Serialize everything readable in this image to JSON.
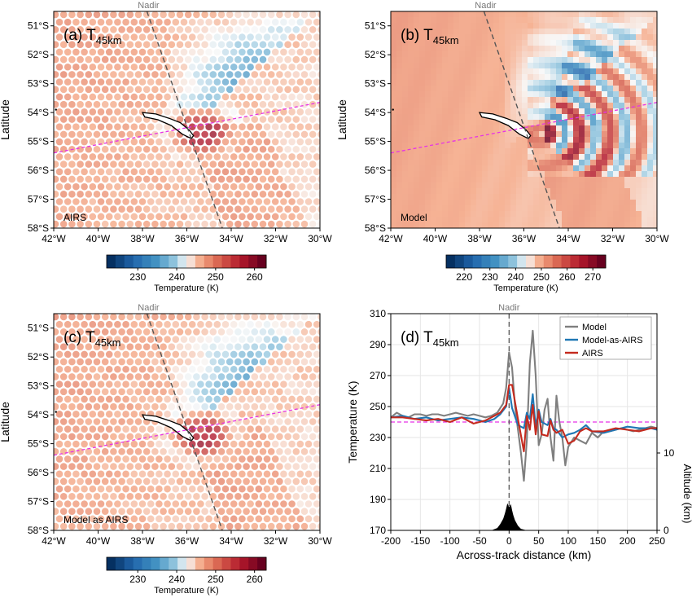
{
  "chart_data": [
    {
      "id": "a",
      "type": "heatmap",
      "panel_label": "(a)",
      "title_main": "T",
      "title_sub": "45km",
      "source_label": "AIRS",
      "nadir_label": "Nadir",
      "ylabel": "Latitude",
      "xticks": [
        "42°W",
        "40°W",
        "38°W",
        "36°W",
        "34°W",
        "32°W",
        "30°W"
      ],
      "yticks": [
        "51°S",
        "52°S",
        "53°S",
        "54°S",
        "55°S",
        "56°S",
        "57°S",
        "58°S"
      ],
      "xlim": [
        -42,
        -30
      ],
      "ylim": [
        -58,
        -50.5
      ],
      "colorbar": {
        "ticks": [
          "230",
          "240",
          "250",
          "260"
        ],
        "range": [
          222,
          263
        ],
        "label": "Temperature (K)"
      }
    },
    {
      "id": "b",
      "type": "heatmap",
      "panel_label": "(b)",
      "title_main": "T",
      "title_sub": "45km",
      "source_label": "Model",
      "nadir_label": "Nadir",
      "ylabel": "Latitude",
      "xticks": [
        "42°W",
        "40°W",
        "38°W",
        "36°W",
        "34°W",
        "32°W",
        "30°W"
      ],
      "yticks": [
        "51°S",
        "52°S",
        "53°S",
        "54°S",
        "55°S",
        "56°S",
        "57°S",
        "58°S"
      ],
      "xlim": [
        -42,
        -30
      ],
      "ylim": [
        -58,
        -50.5
      ],
      "colorbar": {
        "ticks": [
          "220",
          "230",
          "240",
          "250",
          "260",
          "270"
        ],
        "range": [
          213,
          275
        ],
        "label": "Temperature (K)"
      }
    },
    {
      "id": "c",
      "type": "heatmap",
      "panel_label": "(c)",
      "title_main": "T",
      "title_sub": "45km",
      "source_label": "Model as AIRS",
      "nadir_label": "Nadir",
      "ylabel": "Latitude",
      "xticks": [
        "42°W",
        "40°W",
        "38°W",
        "36°W",
        "34°W",
        "32°W",
        "30°W"
      ],
      "yticks": [
        "51°S",
        "52°S",
        "53°S",
        "54°S",
        "55°S",
        "56°S",
        "57°S",
        "58°S"
      ],
      "xlim": [
        -42,
        -30
      ],
      "ylim": [
        -58,
        -50.5
      ],
      "colorbar": {
        "ticks": [
          "230",
          "240",
          "250",
          "260"
        ],
        "range": [
          222,
          263
        ],
        "label": "Temperature (K)"
      }
    },
    {
      "id": "d",
      "type": "line",
      "panel_label": "(d)",
      "title_main": "T",
      "title_sub": "45km",
      "nadir_label": "Nadir",
      "xlabel": "Across-track distance (km)",
      "ylabel": "Temperature (K)",
      "y2label": "Altitude (km)",
      "xlim": [
        -200,
        250
      ],
      "ylim": [
        170,
        310
      ],
      "y2lim": [
        0,
        28
      ],
      "xticks": [
        "-200",
        "-150",
        "-100",
        "-50",
        "0",
        "50",
        "100",
        "150",
        "200",
        "250"
      ],
      "yticks": [
        "170",
        "190",
        "210",
        "230",
        "250",
        "270",
        "290",
        "310"
      ],
      "y2ticks": [
        "0",
        "10"
      ],
      "grid": true,
      "legend_position": "top-right",
      "reference_line_y": 240,
      "nadir_x": 0,
      "series": [
        {
          "name": "Model",
          "color": "#7f7f7f",
          "x": [
            -200,
            -190,
            -180,
            -170,
            -160,
            -150,
            -140,
            -130,
            -120,
            -110,
            -100,
            -90,
            -80,
            -70,
            -60,
            -50,
            -40,
            -30,
            -20,
            -10,
            -5,
            0,
            5,
            10,
            20,
            25,
            30,
            35,
            40,
            45,
            50,
            55,
            60,
            65,
            70,
            75,
            80,
            85,
            90,
            95,
            100,
            110,
            120,
            130,
            140,
            150,
            160,
            170,
            180,
            190,
            200,
            210,
            220,
            230,
            240,
            250
          ],
          "y": [
            243,
            246,
            244,
            243,
            245,
            245,
            244,
            245,
            245,
            244,
            245,
            246,
            245,
            244,
            245,
            244,
            243,
            244,
            246,
            252,
            262,
            285,
            275,
            250,
            220,
            202,
            228,
            278,
            299,
            270,
            225,
            232,
            248,
            255,
            230,
            215,
            257,
            240,
            230,
            212,
            224,
            230,
            228,
            226,
            233,
            230,
            234,
            234,
            235,
            236,
            235,
            234,
            235,
            236,
            237,
            236
          ]
        },
        {
          "name": "Model-as-AIRS",
          "color": "#1f77b4",
          "x": [
            -200,
            -180,
            -160,
            -140,
            -120,
            -100,
            -80,
            -60,
            -40,
            -25,
            -15,
            -5,
            0,
            5,
            15,
            25,
            30,
            35,
            40,
            45,
            50,
            55,
            65,
            70,
            75,
            80,
            90,
            100,
            110,
            120,
            130,
            140,
            160,
            180,
            200,
            220,
            240,
            250
          ],
          "y": [
            243,
            244,
            242,
            243,
            241,
            242,
            243,
            242,
            240,
            242,
            245,
            250,
            262,
            249,
            238,
            236,
            246,
            242,
            258,
            237,
            248,
            240,
            238,
            242,
            236,
            235,
            230,
            232,
            233,
            235,
            238,
            234,
            233,
            235,
            237,
            236,
            236,
            235
          ]
        },
        {
          "name": "AIRS",
          "color": "#c42a1e",
          "x": [
            -200,
            -180,
            -160,
            -140,
            -120,
            -100,
            -80,
            -60,
            -40,
            -25,
            -15,
            -5,
            0,
            5,
            15,
            25,
            30,
            35,
            40,
            45,
            50,
            55,
            65,
            70,
            75,
            80,
            90,
            100,
            110,
            120,
            130,
            140,
            160,
            180,
            200,
            220,
            240,
            250
          ],
          "y": [
            243,
            243,
            242,
            241,
            242,
            240,
            243,
            239,
            241,
            244,
            246,
            251,
            264,
            264,
            242,
            221,
            244,
            235,
            251,
            232,
            247,
            232,
            231,
            241,
            235,
            233,
            235,
            226,
            228,
            234,
            236,
            234,
            234,
            236,
            235,
            234,
            236,
            236
          ]
        }
      ],
      "topography_series": {
        "x": [
          -30,
          -20,
          -15,
          -10,
          -7,
          -5,
          -3,
          0,
          3,
          5,
          7,
          10,
          15,
          20,
          30
        ],
        "altitude": [
          0,
          0.3,
          0.8,
          1.5,
          2.2,
          2.8,
          3.5,
          3.0,
          3.4,
          2.6,
          2.0,
          1.3,
          0.6,
          0.2,
          0
        ]
      }
    }
  ]
}
